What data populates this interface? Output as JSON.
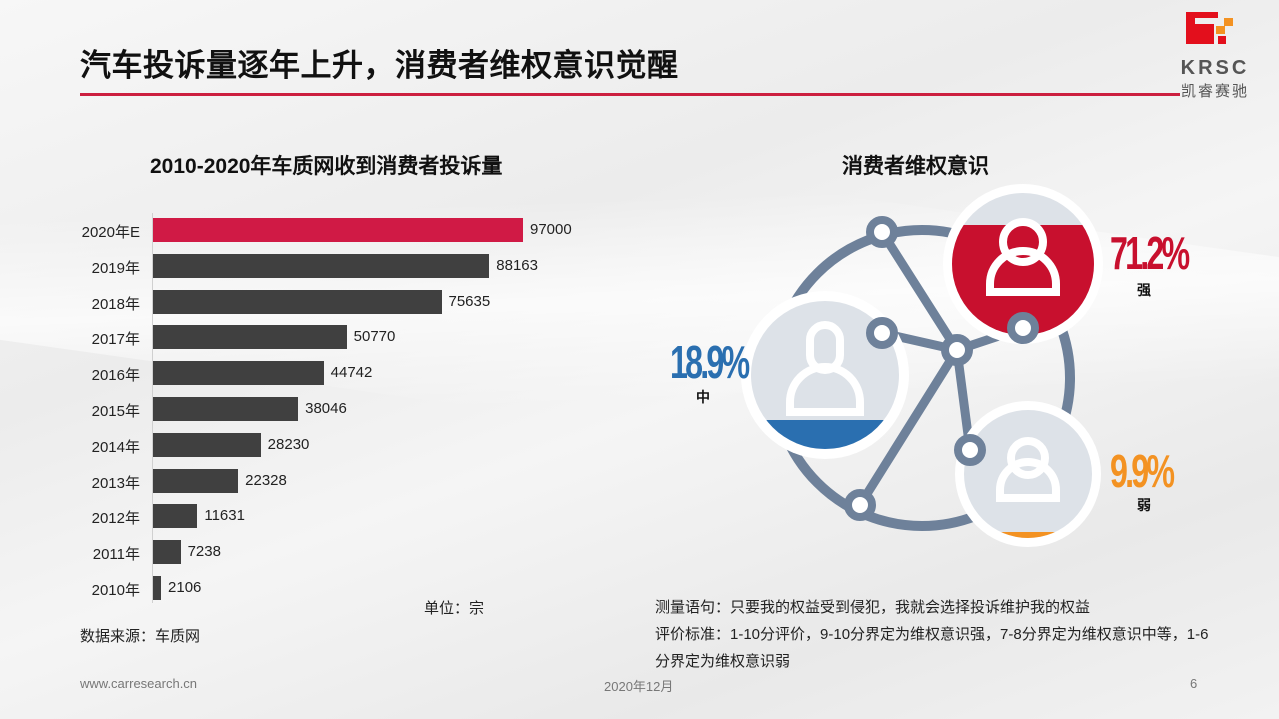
{
  "header": {
    "title": "汽车投诉量逐年上升，消费者维权意识觉醒",
    "logo": {
      "text": "KRSC",
      "subtext": "凯睿赛驰"
    }
  },
  "left_panel": {
    "title": "2010-2020年车质网收到消费者投诉量",
    "unit": "单位：宗",
    "source": "数据来源：车质网"
  },
  "right_panel": {
    "title": "消费者维权意识",
    "segments": [
      {
        "label": "强",
        "value": "71.2%",
        "color": "#c8102e"
      },
      {
        "label": "中",
        "value": "18.9%",
        "color": "#2a6fb0"
      },
      {
        "label": "弱",
        "value": "9.9%",
        "color": "#f39222"
      }
    ],
    "notes": {
      "line1": "测量语句：只要我的权益受到侵犯，我就会选择投诉维护我的权益",
      "line2": "评价标准：1-10分评价，9-10分界定为维权意识强，7-8分界定为维权意识中等，1-6分界定为维权意识弱"
    }
  },
  "footer": {
    "url": "www.carresearch.cn",
    "date": "2020年12月",
    "page": "6"
  },
  "colors": {
    "accent_red": "#d01a45",
    "bar_dark": "#404040",
    "network_gray": "#6e819a",
    "strong": "#c8102e",
    "medium": "#2a6fb0",
    "weak": "#f39222"
  },
  "chart_data": [
    {
      "type": "bar",
      "orientation": "horizontal",
      "title": "2010-2020年车质网收到消费者投诉量",
      "categories": [
        "2020年E",
        "2019年",
        "2018年",
        "2017年",
        "2016年",
        "2015年",
        "2014年",
        "2013年",
        "2012年",
        "2011年",
        "2010年"
      ],
      "values": [
        97000,
        88163,
        75635,
        50770,
        44742,
        38046,
        28230,
        22328,
        11631,
        7238,
        2106
      ],
      "highlight": "2020年E",
      "xlabel": "",
      "ylabel": "",
      "unit": "宗",
      "source": "车质网",
      "data_labels": true,
      "grid": false
    },
    {
      "type": "pie",
      "title": "消费者维权意识",
      "categories": [
        "强",
        "中",
        "弱"
      ],
      "values": [
        71.2,
        18.9,
        9.9
      ],
      "value_format": "percent",
      "colors": [
        "#c8102e",
        "#2a6fb0",
        "#f39222"
      ]
    }
  ]
}
